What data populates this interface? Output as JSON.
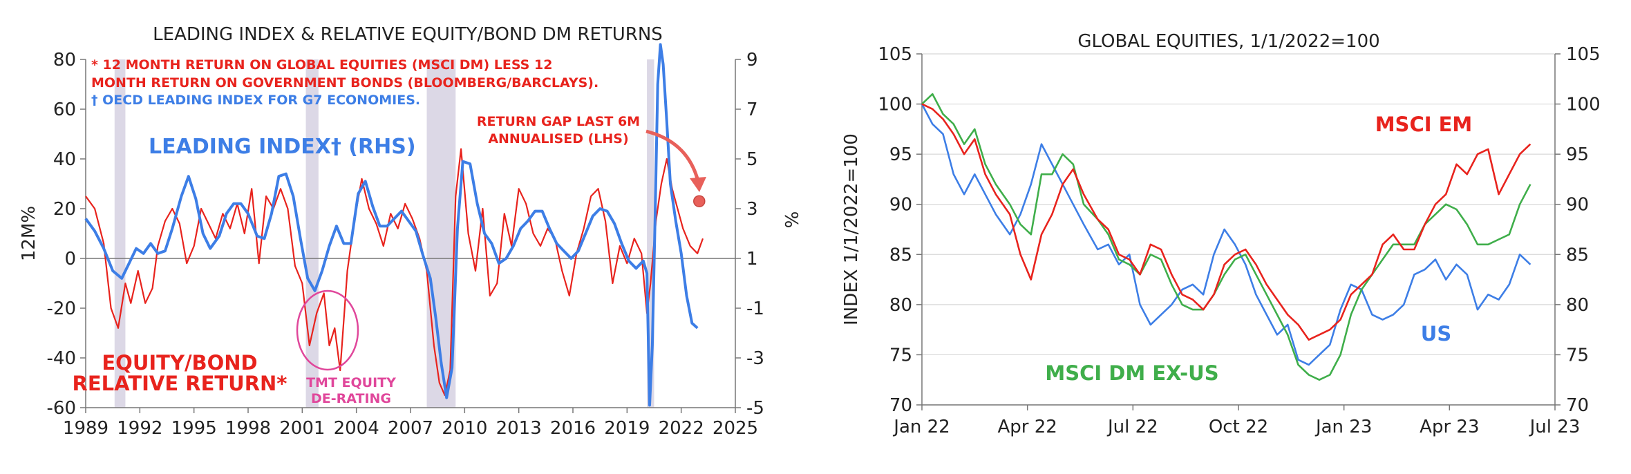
{
  "colors": {
    "red": "#e8231d",
    "blue": "#3d7ee6",
    "green": "#3fae4a",
    "pink": "#e0479b",
    "shade": "#dcd8e6",
    "dot": "#e8605a"
  },
  "chart_data": [
    {
      "type": "line",
      "title": "LEADING INDEX & RELATIVE EQUITY/BOND DM RETURNS",
      "ylabel_left": "12M%",
      "ylabel_right": "%",
      "xlim": [
        1989,
        2025
      ],
      "ylim_left": [
        -60,
        80
      ],
      "ylim_right": [
        -5,
        9
      ],
      "x_ticks": [
        "1989",
        "1992",
        "1995",
        "1998",
        "2001",
        "2004",
        "2007",
        "2010",
        "2013",
        "2016",
        "2019",
        "2022",
        "2025"
      ],
      "y_ticks_left": [
        "80",
        "60",
        "40",
        "20",
        "0",
        "-20",
        "-40",
        "-60"
      ],
      "y_ticks_right": [
        "9",
        "7",
        "5",
        "3",
        "1",
        "-1",
        "-3",
        "-5"
      ],
      "grid": false,
      "recessions": [
        [
          1990.6,
          1991.2
        ],
        [
          2001.2,
          2001.9
        ],
        [
          2007.9,
          2009.5
        ],
        [
          2020.1,
          2020.5
        ]
      ],
      "notes": {
        "line1": "* 12 MONTH RETURN ON GLOBAL EQUITIES (MSCI DM) LESS 12",
        "line2": "MONTH RETURN ON GOVERNMENT BONDS (BLOOMBERG/BARCLAYS).",
        "line3": "† OECD LEADING INDEX FOR G7 ECONOMIES."
      },
      "annotations": {
        "leading_index": "LEADING INDEX† (RHS)",
        "eq_bond_1": "EQUITY/BOND",
        "eq_bond_2": "RELATIVE RETURN*",
        "tmt_1": "TMT EQUITY",
        "tmt_2": "DE-RATING",
        "gap_1": "RETURN GAP LAST 6M",
        "gap_2": "ANNUALISED (LHS)"
      },
      "return_gap_point": {
        "x": 2023.0,
        "y": 23
      },
      "series": [
        {
          "name": "EQUITY/BOND RELATIVE RETURN*",
          "axis": "left",
          "x": [
            1989.0,
            1989.5,
            1990.0,
            1990.4,
            1990.8,
            1991.2,
            1991.5,
            1991.9,
            1992.3,
            1992.7,
            1993.0,
            1993.4,
            1993.8,
            1994.2,
            1994.6,
            1995.0,
            1995.4,
            1995.8,
            1996.2,
            1996.6,
            1997.0,
            1997.4,
            1997.8,
            1998.2,
            1998.6,
            1999.0,
            1999.4,
            1999.8,
            2000.2,
            2000.6,
            2001.0,
            2001.4,
            2001.8,
            2002.2,
            2002.5,
            2002.8,
            2003.1,
            2003.5,
            2003.9,
            2004.3,
            2004.7,
            2005.1,
            2005.5,
            2005.9,
            2006.3,
            2006.7,
            2007.1,
            2007.5,
            2007.9,
            2008.3,
            2008.6,
            2008.9,
            2009.2,
            2009.5,
            2009.8,
            2010.2,
            2010.6,
            2011.0,
            2011.4,
            2011.8,
            2012.2,
            2012.6,
            2013.0,
            2013.4,
            2013.8,
            2014.2,
            2014.6,
            2015.0,
            2015.4,
            2015.8,
            2016.2,
            2016.6,
            2017.0,
            2017.4,
            2017.8,
            2018.2,
            2018.6,
            2019.0,
            2019.4,
            2019.8,
            2020.1,
            2020.3,
            2020.6,
            2020.9,
            2021.2,
            2021.5,
            2021.8,
            2022.1,
            2022.5,
            2022.9,
            2023.2
          ],
          "y": [
            25,
            20,
            6,
            -20,
            -28,
            -10,
            -18,
            -5,
            -18,
            -12,
            5,
            15,
            20,
            14,
            -2,
            5,
            20,
            14,
            8,
            18,
            12,
            22,
            10,
            28,
            -2,
            25,
            20,
            28,
            20,
            -3,
            -10,
            -35,
            -22,
            -14,
            -35,
            -28,
            -45,
            -5,
            16,
            32,
            20,
            14,
            5,
            18,
            12,
            22,
            16,
            8,
            -5,
            -35,
            -50,
            -55,
            -45,
            25,
            44,
            10,
            -5,
            20,
            -15,
            -10,
            18,
            5,
            28,
            22,
            10,
            5,
            12,
            8,
            -5,
            -15,
            2,
            12,
            25,
            28,
            15,
            -10,
            5,
            -2,
            8,
            2,
            -22,
            -10,
            15,
            30,
            40,
            28,
            20,
            12,
            5,
            2,
            8
          ]
        },
        {
          "name": "LEADING INDEX† (RHS)",
          "axis": "right",
          "x": [
            1989.0,
            1989.5,
            1990.0,
            1990.5,
            1991.0,
            1991.4,
            1991.8,
            1992.2,
            1992.6,
            1993.0,
            1993.4,
            1993.8,
            1994.3,
            1994.7,
            1995.1,
            1995.5,
            1995.9,
            1996.4,
            1996.8,
            1997.2,
            1997.6,
            1998.0,
            1998.5,
            1998.9,
            1999.3,
            1999.7,
            2000.1,
            2000.5,
            2000.9,
            2001.3,
            2001.7,
            2002.1,
            2002.5,
            2002.9,
            2003.3,
            2003.7,
            2004.1,
            2004.5,
            2004.9,
            2005.3,
            2005.7,
            2006.1,
            2006.5,
            2006.9,
            2007.3,
            2007.7,
            2008.1,
            2008.4,
            2008.7,
            2009.0,
            2009.3,
            2009.6,
            2009.9,
            2010.3,
            2010.7,
            2011.1,
            2011.5,
            2011.9,
            2012.3,
            2012.7,
            2013.1,
            2013.5,
            2013.9,
            2014.3,
            2014.7,
            2015.1,
            2015.5,
            2015.9,
            2016.3,
            2016.7,
            2017.1,
            2017.5,
            2017.9,
            2018.3,
            2018.7,
            2019.1,
            2019.5,
            2019.9,
            2020.1,
            2020.25,
            2020.4,
            2020.55,
            2020.7,
            2020.85,
            2021.0,
            2021.2,
            2021.4,
            2021.7,
            2022.0,
            2022.3,
            2022.6,
            2022.9
          ],
          "y": [
            2.6,
            2.1,
            1.4,
            0.5,
            0.2,
            0.8,
            1.4,
            1.2,
            1.6,
            1.2,
            1.3,
            2.2,
            3.5,
            4.3,
            3.4,
            2.0,
            1.4,
            1.9,
            2.8,
            3.2,
            3.2,
            2.8,
            1.9,
            1.8,
            2.8,
            4.3,
            4.4,
            3.5,
            1.8,
            0.2,
            -0.3,
            0.5,
            1.5,
            2.3,
            1.6,
            1.6,
            3.6,
            4.1,
            3.1,
            2.3,
            2.3,
            2.6,
            2.9,
            2.5,
            2.1,
            1.1,
            0.2,
            -1.4,
            -3.2,
            -4.6,
            -3.4,
            2.2,
            4.9,
            4.8,
            3.2,
            2.0,
            1.6,
            0.8,
            1.0,
            1.5,
            2.2,
            2.5,
            2.9,
            2.9,
            2.2,
            1.6,
            1.3,
            1.0,
            1.3,
            2.0,
            2.7,
            3.0,
            2.9,
            2.4,
            1.6,
            0.9,
            0.6,
            0.9,
            0.4,
            -4.9,
            -2.5,
            2.5,
            8.0,
            9.6,
            8.8,
            6.5,
            4.0,
            2.5,
            1.2,
            -0.5,
            -1.6,
            -1.8
          ]
        }
      ]
    },
    {
      "type": "line",
      "title": "GLOBAL EQUITIES, 1/1/2022=100",
      "ylabel": "INDEX 1/1/2022=100",
      "xlim": [
        0,
        18
      ],
      "ylim": [
        70,
        105
      ],
      "x_ticks": [
        "Jan 22",
        "Apr 22",
        "Jul 22",
        "Oct 22",
        "Jan 23",
        "Apr 23",
        "Jul 23"
      ],
      "y_ticks": [
        "105",
        "100",
        "95",
        "90",
        "85",
        "80",
        "75",
        "70"
      ],
      "grid": true,
      "annotations": {
        "msci_em": "MSCI EM",
        "us": "US",
        "msci_dm_ex_us": "MSCI DM EX-US"
      },
      "series": [
        {
          "name": "MSCI EM",
          "x": [
            0,
            0.3,
            0.6,
            0.9,
            1.2,
            1.5,
            1.8,
            2.1,
            2.5,
            2.8,
            3.1,
            3.4,
            3.7,
            4.0,
            4.3,
            4.6,
            5.0,
            5.3,
            5.6,
            5.9,
            6.2,
            6.5,
            6.8,
            7.1,
            7.4,
            7.7,
            8.0,
            8.3,
            8.6,
            8.9,
            9.2,
            9.5,
            9.8,
            10.1,
            10.4,
            10.7,
            11.0,
            11.3,
            11.6,
            11.9,
            12.2,
            12.5,
            12.8,
            13.1,
            13.4,
            13.7,
            14.0,
            14.3,
            14.6,
            14.9,
            15.2,
            15.5,
            15.8,
            16.1,
            16.4,
            16.7,
            17.0,
            17.3
          ],
          "y": [
            100,
            99.5,
            98.5,
            97,
            95,
            96.5,
            93,
            91,
            89,
            85,
            82.5,
            87,
            89,
            92,
            93.5,
            91,
            88.5,
            87.5,
            85,
            84.5,
            83,
            86,
            85.5,
            83,
            81,
            80.5,
            79.5,
            81,
            84,
            85,
            85.5,
            84,
            82,
            80.5,
            79,
            78,
            76.5,
            77,
            77.5,
            78.5,
            81,
            82,
            83,
            86,
            87,
            85.5,
            85.5,
            88,
            90,
            91,
            94,
            93,
            95,
            95.5,
            91,
            93,
            95,
            96
          ]
        },
        {
          "name": "MSCI DM EX-US",
          "x": [
            0,
            0.3,
            0.6,
            0.9,
            1.2,
            1.5,
            1.8,
            2.1,
            2.5,
            2.8,
            3.1,
            3.4,
            3.7,
            4.0,
            4.3,
            4.6,
            5.0,
            5.3,
            5.6,
            5.9,
            6.2,
            6.5,
            6.8,
            7.1,
            7.4,
            7.7,
            8.0,
            8.3,
            8.6,
            8.9,
            9.2,
            9.5,
            9.8,
            10.1,
            10.4,
            10.7,
            11.0,
            11.3,
            11.6,
            11.9,
            12.2,
            12.5,
            12.8,
            13.1,
            13.4,
            13.7,
            14.0,
            14.3,
            14.6,
            14.9,
            15.2,
            15.5,
            15.8,
            16.1,
            16.4,
            16.7,
            17.0,
            17.3
          ],
          "y": [
            100,
            101,
            99,
            98,
            96,
            97.5,
            94,
            92,
            90,
            88,
            87,
            93,
            93,
            95,
            94,
            90,
            88.5,
            87,
            84.5,
            84,
            83,
            85,
            84.5,
            82,
            80,
            79.5,
            79.5,
            81,
            83,
            84.5,
            85,
            83,
            81,
            79,
            77,
            74,
            73,
            72.5,
            73,
            75,
            79,
            81.5,
            83,
            84.5,
            86,
            86,
            86,
            88,
            89,
            90,
            89.5,
            88,
            86,
            86,
            86.5,
            87,
            90,
            92
          ]
        },
        {
          "name": "US",
          "x": [
            0,
            0.3,
            0.6,
            0.9,
            1.2,
            1.5,
            1.8,
            2.1,
            2.5,
            2.8,
            3.1,
            3.4,
            3.7,
            4.0,
            4.3,
            4.6,
            5.0,
            5.3,
            5.6,
            5.9,
            6.2,
            6.5,
            6.8,
            7.1,
            7.4,
            7.7,
            8.0,
            8.3,
            8.6,
            8.9,
            9.2,
            9.5,
            9.8,
            10.1,
            10.4,
            10.7,
            11.0,
            11.3,
            11.6,
            11.9,
            12.2,
            12.5,
            12.8,
            13.1,
            13.4,
            13.7,
            14.0,
            14.3,
            14.6,
            14.9,
            15.2,
            15.5,
            15.8,
            16.1,
            16.4,
            16.7,
            17.0,
            17.3
          ],
          "y": [
            100,
            98,
            97,
            93,
            91,
            93,
            91,
            89,
            87,
            89,
            92,
            96,
            94,
            92,
            90,
            88,
            85.5,
            86,
            84,
            85,
            80,
            78,
            79,
            80,
            81.5,
            82,
            81,
            85,
            87.5,
            86,
            84,
            81,
            79,
            77,
            78,
            74.5,
            74,
            75,
            76,
            79.5,
            82,
            81.5,
            79,
            78.5,
            79,
            80,
            83,
            83.5,
            84.5,
            82.5,
            84,
            83,
            79.5,
            81,
            80.5,
            82,
            85,
            84
          ]
        }
      ]
    }
  ]
}
